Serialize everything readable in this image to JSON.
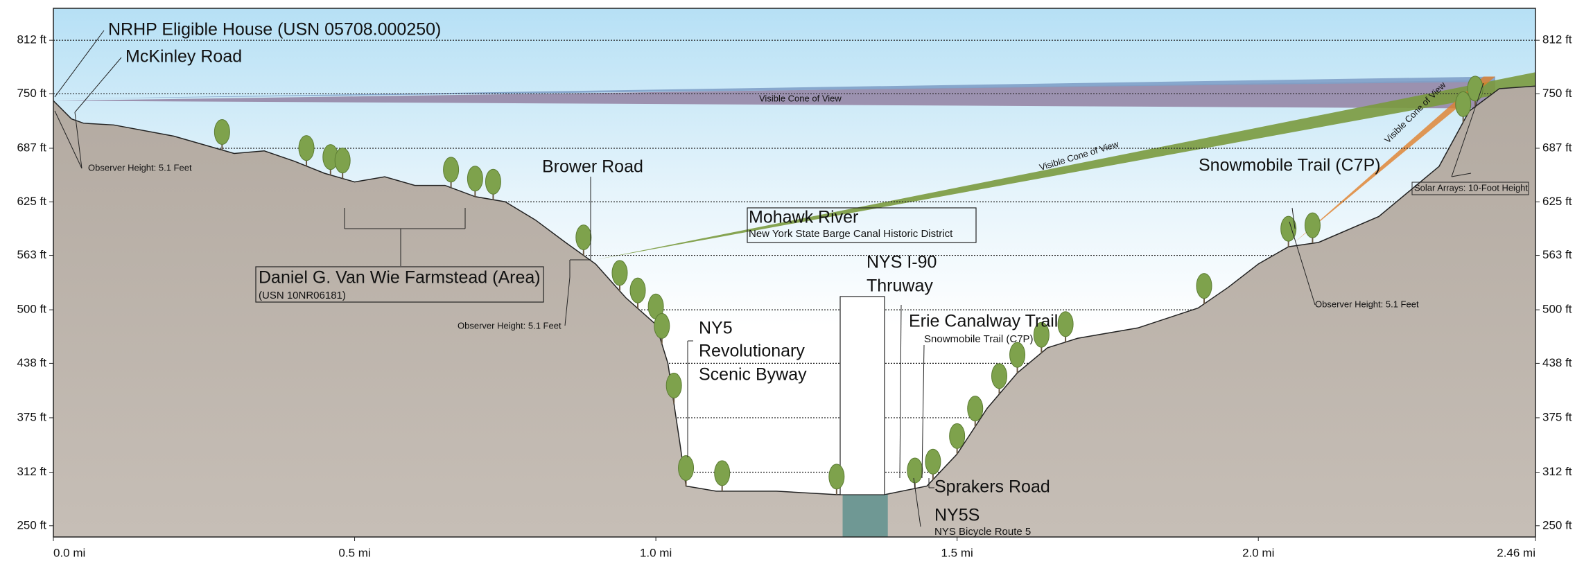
{
  "chart_data": {
    "type": "area",
    "color": "#bab2aa",
    "x": [
      0,
      0.03,
      0.05,
      0.1,
      0.2,
      0.3,
      0.35,
      0.4,
      0.45,
      0.5,
      0.55,
      0.6,
      0.65,
      0.7,
      0.75,
      0.8,
      0.85,
      0.9,
      0.95,
      1.0,
      1.02,
      1.04,
      1.05,
      1.1,
      1.2,
      1.3,
      1.38,
      1.45,
      1.5,
      1.55,
      1.6,
      1.65,
      1.7,
      1.8,
      1.9,
      1.95,
      2.0,
      2.05,
      2.1,
      2.2,
      2.3,
      2.35,
      2.4,
      2.46
    ],
    "values": [
      742,
      721,
      716,
      714,
      701,
      681,
      684,
      672,
      658,
      648,
      654,
      644,
      644,
      631,
      625,
      604,
      578,
      553,
      514,
      483,
      438,
      345,
      296,
      290,
      290,
      286,
      286,
      296,
      333,
      386,
      427,
      456,
      467,
      479,
      502,
      526,
      553,
      573,
      578,
      608,
      666,
      730,
      756,
      759
    ],
    "xlim": [
      0,
      2.46
    ],
    "ylim": [
      237,
      849
    ],
    "xticks": [
      {
        "value": 0,
        "label": "0.0 mi"
      },
      {
        "value": 0.5,
        "label": "0.5 mi"
      },
      {
        "value": 1.0,
        "label": "1.0 mi"
      },
      {
        "value": 1.5,
        "label": "1.5 mi"
      },
      {
        "value": 2.0,
        "label": "2.0 mi"
      },
      {
        "value": 2.46,
        "label": "2.46 mi"
      }
    ],
    "yticks": [
      {
        "value": 812,
        "label": "812 ft"
      },
      {
        "value": 750,
        "label": "750 ft"
      },
      {
        "value": 687,
        "label": "687 ft"
      },
      {
        "value": 625,
        "label": "625 ft"
      },
      {
        "value": 563,
        "label": "563 ft"
      },
      {
        "value": 500,
        "label": "500 ft"
      },
      {
        "value": 438,
        "label": "438 ft"
      },
      {
        "value": 375,
        "label": "375 ft"
      },
      {
        "value": 312,
        "label": "312 ft"
      },
      {
        "value": 250,
        "label": "250 ft"
      }
    ],
    "grid": true,
    "annotations": [
      "NRHP Eligible House (USN 05708.000250)",
      "McKinley Road",
      "Observer Height: 5.1 Feet",
      "Visible Cone of View",
      "Visible Cone of View",
      "Visible Cone of View",
      "Brower Road",
      "Daniel G. Van Wie Farmstead (Area)",
      "(USN 10NR06181)",
      "Observer Height: 5.1 Feet",
      "Mohawk River",
      "New York State Barge Canal Historic District",
      "NYS I-90",
      "Thruway",
      "NY5",
      "Revolutionary",
      "Scenic Byway",
      "Erie Canalway Trail",
      "Snowmobile Trail (C7P)",
      "Sprakers Road",
      "NY5S",
      "NYS Bicycle Route 5",
      "Snowmobile Trail (C7P)",
      "Observer Height: 5.1 Feet",
      "Solar Arrays: 10-Foot Height"
    ]
  }
}
